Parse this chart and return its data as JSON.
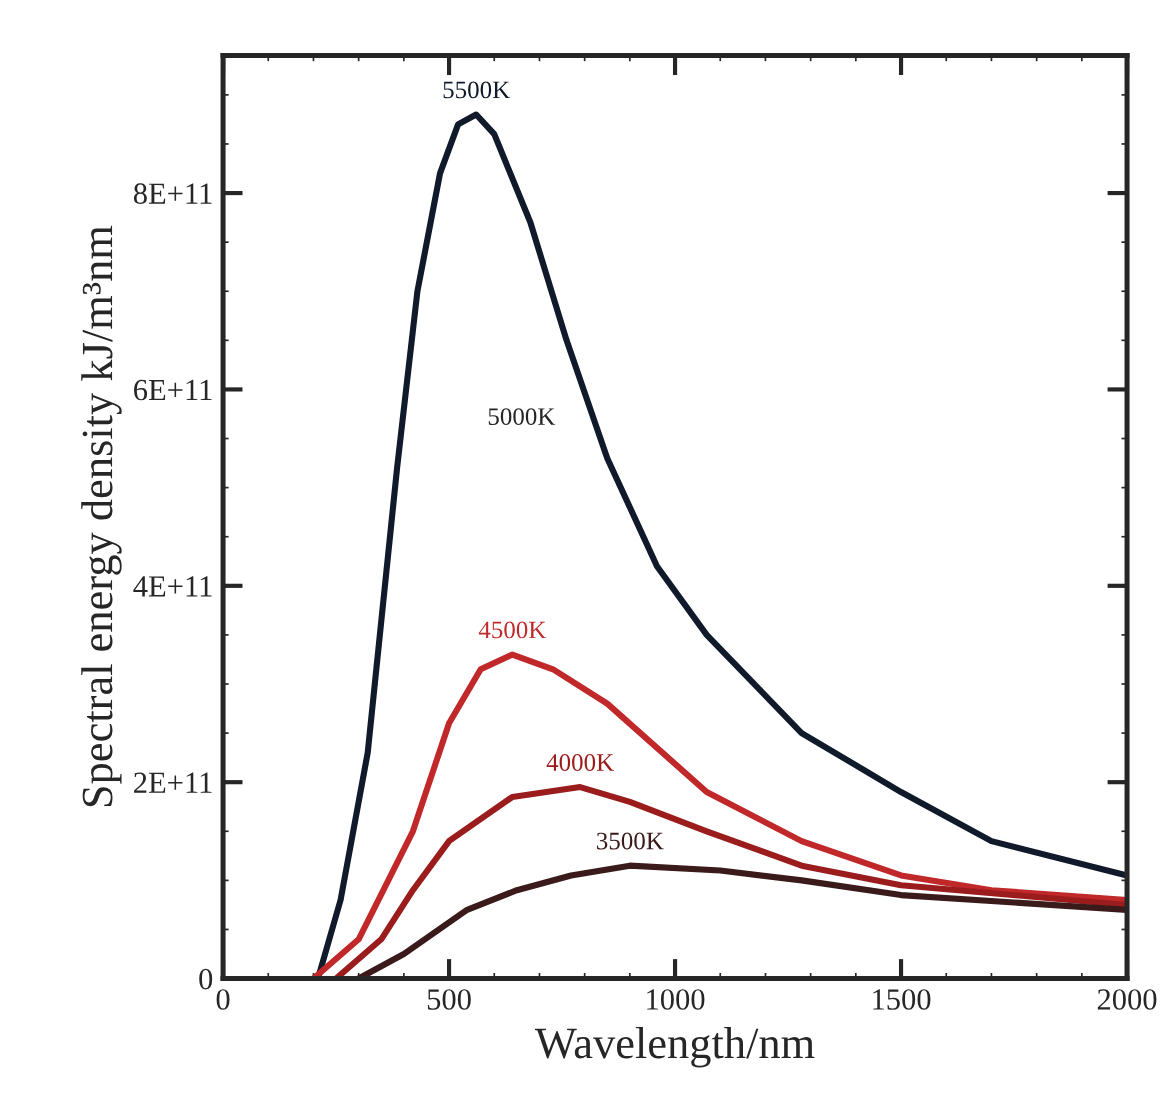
{
  "chart_data": {
    "type": "line",
    "xlabel": "Wavelength/nm",
    "ylabel": "Spectral energy density kJ/m³nm",
    "xlim": [
      0,
      2000
    ],
    "xticks": [
      0,
      500,
      1000,
      1500,
      2000
    ],
    "ylim": [
      0,
      940000000000
    ],
    "yticks": [
      {
        "value": 0,
        "label": "0"
      },
      {
        "value": 200000000000,
        "label": "2E+11"
      },
      {
        "value": 400000000000,
        "label": "4E+11"
      },
      {
        "value": 600000000000,
        "label": "6E+11"
      },
      {
        "value": 800000000000,
        "label": "8E+11"
      }
    ],
    "grid": false,
    "legend": false,
    "marker": "none",
    "line_style": "solid",
    "series": [
      {
        "name": "5500K",
        "color": "#101a2a",
        "x": [
          210,
          260,
          320,
          385,
          430,
          480,
          520,
          560,
          600,
          680,
          760,
          850,
          960,
          1070,
          1280,
          1500,
          1700,
          2000
        ],
        "values": [
          0,
          80000000000,
          230000000000,
          520000000000,
          700000000000,
          820000000000,
          870000000000,
          880000000000,
          860000000000,
          770000000000,
          650000000000,
          530000000000,
          420000000000,
          350000000000,
          250000000000,
          190000000000,
          140000000000,
          105000000000
        ]
      },
      {
        "name": "4500K",
        "color": "#c0282a",
        "x": [
          200,
          300,
          420,
          500,
          570,
          640,
          730,
          850,
          1070,
          1280,
          1500,
          1700,
          2000
        ],
        "values": [
          0,
          40000000000,
          150000000000,
          260000000000,
          315000000000,
          330000000000,
          315000000000,
          280000000000,
          190000000000,
          140000000000,
          105000000000,
          90000000000,
          80000000000
        ]
      },
      {
        "name": "4000K",
        "color": "#9b1c1c",
        "x": [
          250,
          350,
          420,
          500,
          640,
          790,
          900,
          1070,
          1280,
          1500,
          2000
        ],
        "values": [
          0,
          40000000000,
          90000000000,
          140000000000,
          185000000000,
          195000000000,
          180000000000,
          150000000000,
          115000000000,
          95000000000,
          75000000000
        ]
      },
      {
        "name": "3500K",
        "color": "#3a1a1a",
        "x": [
          300,
          400,
          540,
          650,
          770,
          900,
          1100,
          1280,
          1500,
          2000
        ],
        "values": [
          0,
          25000000000,
          70000000000,
          90000000000,
          105000000000,
          115000000000,
          110000000000,
          100000000000,
          85000000000,
          70000000000
        ]
      }
    ],
    "annotations": [
      "5000K"
    ]
  }
}
